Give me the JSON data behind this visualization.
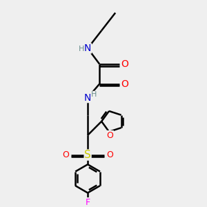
{
  "bg_color": "#efefef",
  "bond_color": "#000000",
  "bond_width": 1.8,
  "atom_colors": {
    "N": "#0000cd",
    "O": "#ff0000",
    "S": "#cccc00",
    "F": "#ff00ff",
    "H": "#6b8e8e",
    "C": "#000000"
  },
  "font_size": 8,
  "fig_size": [
    3.0,
    3.0
  ],
  "dpi": 100
}
